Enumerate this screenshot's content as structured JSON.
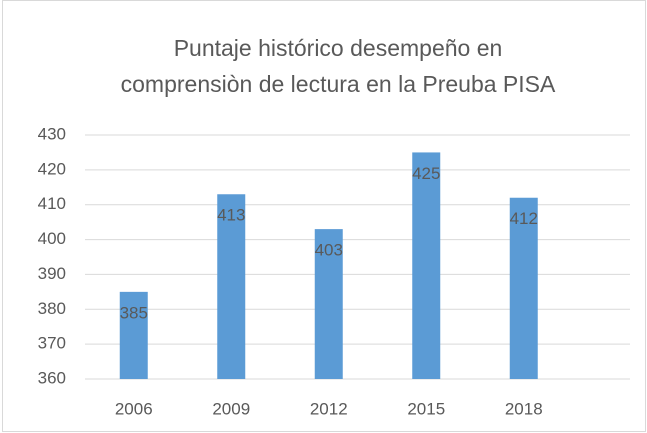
{
  "chart_data": {
    "type": "bar",
    "title": [
      "Puntaje histórico desempeño en",
      "comprensiòn de lectura en la Preuba PISA"
    ],
    "categories": [
      "2006",
      "2009",
      "2012",
      "2015",
      "2018"
    ],
    "values": [
      385,
      413,
      403,
      425,
      412
    ],
    "color": "#5b9bd5",
    "ylim": [
      360,
      430
    ],
    "yticks": [
      360,
      370,
      380,
      390,
      400,
      410,
      420,
      430
    ],
    "grid": true
  }
}
